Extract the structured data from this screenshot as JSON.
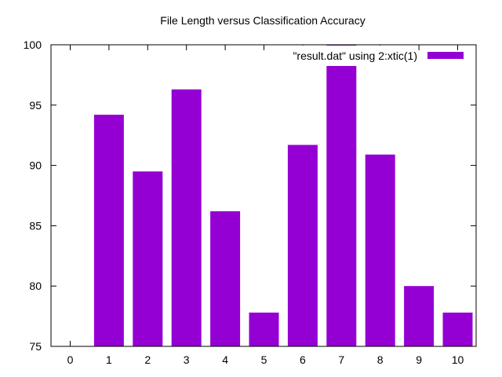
{
  "chart_data": {
    "type": "bar",
    "title": "File Length versus Classification Accuracy",
    "xlabel": "",
    "ylabel": "",
    "categories": [
      "0",
      "1",
      "2",
      "3",
      "4",
      "5",
      "6",
      "7",
      "8",
      "9",
      "10"
    ],
    "series": [
      {
        "name": "\"result.dat\" using 2:xtic(1)",
        "values": [
          75,
          94.2,
          89.5,
          96.3,
          86.2,
          77.8,
          91.7,
          100,
          90.9,
          80,
          77.8
        ],
        "color": "#9400d3"
      }
    ],
    "ylim": [
      75,
      100
    ],
    "yticks": [
      "75",
      "80",
      "85",
      "90",
      "95",
      "100"
    ],
    "legend_text": "\"result.dat\" using 2:xtic(1)",
    "legend_position": "top-right",
    "grid": false
  }
}
